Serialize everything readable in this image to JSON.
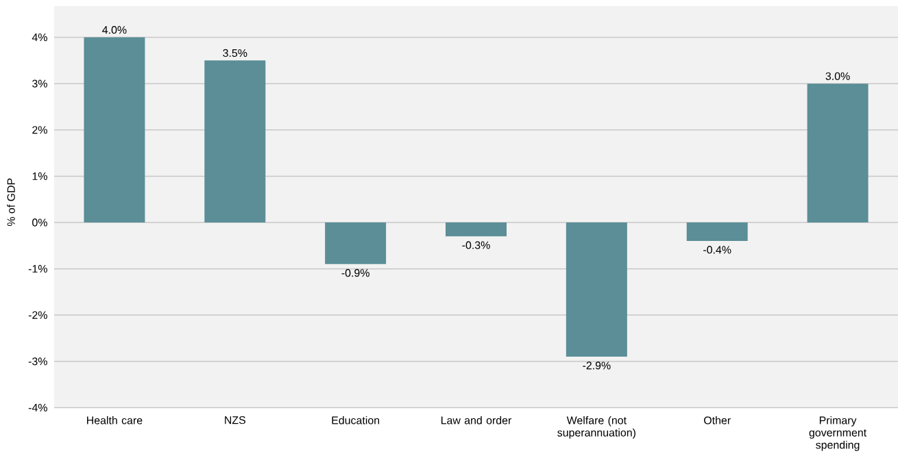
{
  "chart_data": {
    "type": "bar",
    "ylabel": "% of GDP",
    "categories": [
      "Health care",
      "NZS",
      "Education",
      "Law and order",
      "Welfare (not superannuation)",
      "Other",
      "Primary government spending"
    ],
    "values": [
      4.0,
      3.5,
      -0.9,
      -0.3,
      -2.9,
      -0.4,
      3.0
    ],
    "value_labels": [
      "4.0%",
      "3.5%",
      "-0.9%",
      "-0.3%",
      "-2.9%",
      "-0.4%",
      "3.0%"
    ],
    "color": "#5b8e97",
    "ylim": [
      -4,
      4
    ],
    "yticks": [
      {
        "value": -4,
        "label": "-4%"
      },
      {
        "value": -3,
        "label": "-3%"
      },
      {
        "value": -2,
        "label": "-2%"
      },
      {
        "value": -1,
        "label": "-1%"
      },
      {
        "value": 0,
        "label": "0%"
      },
      {
        "value": 1,
        "label": "1%"
      },
      {
        "value": 2,
        "label": "2%"
      },
      {
        "value": 3,
        "label": "3%"
      },
      {
        "value": 4,
        "label": "4%"
      }
    ],
    "grid": "y"
  }
}
